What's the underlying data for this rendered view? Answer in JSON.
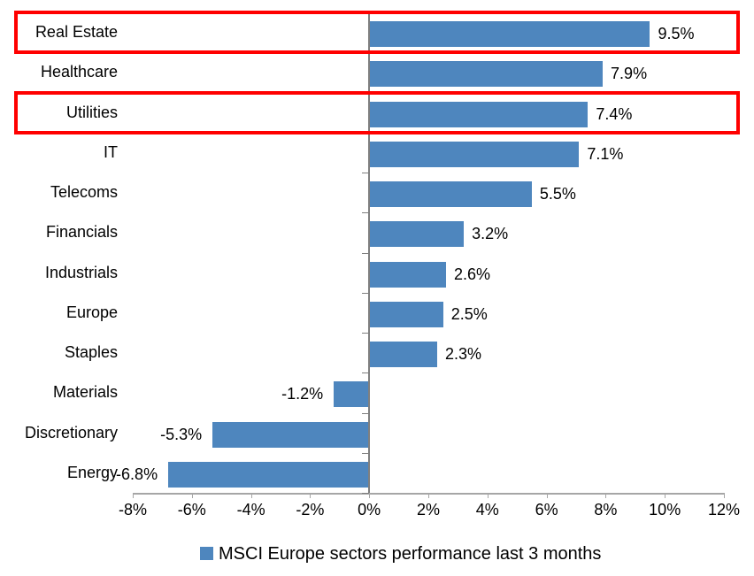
{
  "chart_data": {
    "type": "bar",
    "orientation": "horizontal",
    "title": "",
    "categories": [
      "Real Estate",
      "Healthcare",
      "Utilities",
      "IT",
      "Telecoms",
      "Financials",
      "Industrials",
      "Europe",
      "Staples",
      "Materials",
      "Discretionary",
      "Energy"
    ],
    "values": [
      9.5,
      7.9,
      7.4,
      7.1,
      5.5,
      3.2,
      2.6,
      2.5,
      2.3,
      -1.2,
      -5.3,
      -6.8
    ],
    "value_labels": [
      "9.5%",
      "7.9%",
      "7.4%",
      "7.1%",
      "5.5%",
      "3.2%",
      "2.6%",
      "2.5%",
      "2.3%",
      "-1.2%",
      "-5.3%",
      "-6.8%"
    ],
    "x_axis": {
      "min": -8,
      "max": 12,
      "step": 2,
      "tick_labels": [
        "-8%",
        "-6%",
        "-4%",
        "-2%",
        "0%",
        "2%",
        "4%",
        "6%",
        "8%",
        "10%",
        "12%"
      ]
    },
    "grid": false,
    "bar_color": "#4e86be",
    "axis_color": "#a6a6a6",
    "category_axis_color": "#7f7f7f",
    "highlight_color": "#ff0000",
    "highlighted_categories": [
      "Real Estate",
      "Utilities"
    ],
    "legend": {
      "position": "bottom",
      "label": "MSCI Europe sectors performance last 3 months",
      "marker_color": "#4e86be"
    }
  }
}
